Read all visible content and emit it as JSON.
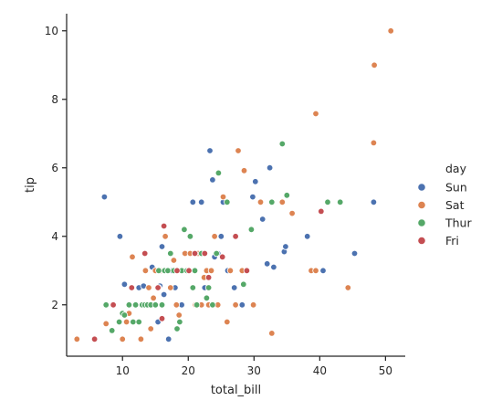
{
  "chart_data": {
    "type": "scatter",
    "xlabel": "total_bill",
    "ylabel": "tip",
    "xlim": [
      1.5,
      53
    ],
    "ylim": [
      0.5,
      10.5
    ],
    "xticks": [
      10,
      20,
      30,
      40,
      50
    ],
    "yticks": [
      2,
      4,
      6,
      8,
      10
    ],
    "grid": false,
    "legend": {
      "title": "day",
      "placement": "right"
    },
    "series": [
      {
        "name": "Sun",
        "color": "#4c72b0",
        "points": [
          [
            7.25,
            5.15
          ],
          [
            9.6,
            4.0
          ],
          [
            10.3,
            2.6
          ],
          [
            11.0,
            2.0
          ],
          [
            12.5,
            2.5
          ],
          [
            13.2,
            2.55
          ],
          [
            14.0,
            2.0
          ],
          [
            14.5,
            3.1
          ],
          [
            15.0,
            2.0
          ],
          [
            15.4,
            1.5
          ],
          [
            15.7,
            2.55
          ],
          [
            16.0,
            3.7
          ],
          [
            16.3,
            2.3
          ],
          [
            17.0,
            1.0
          ],
          [
            17.5,
            3.0
          ],
          [
            18.0,
            2.5
          ],
          [
            18.3,
            3.0
          ],
          [
            19.0,
            2.0
          ],
          [
            19.4,
            3.5
          ],
          [
            20.0,
            3.0
          ],
          [
            20.7,
            5.0
          ],
          [
            21.0,
            3.5
          ],
          [
            21.5,
            3.5
          ],
          [
            22.0,
            5.0
          ],
          [
            22.5,
            2.5
          ],
          [
            23.0,
            3.0
          ],
          [
            23.3,
            6.5
          ],
          [
            23.7,
            5.65
          ],
          [
            24.0,
            3.4
          ],
          [
            24.5,
            3.5
          ],
          [
            25.0,
            4.0
          ],
          [
            25.3,
            5.0
          ],
          [
            26.0,
            3.0
          ],
          [
            27.0,
            2.5
          ],
          [
            28.2,
            2.0
          ],
          [
            29.0,
            3.0
          ],
          [
            29.8,
            5.15
          ],
          [
            30.2,
            5.6
          ],
          [
            31.3,
            4.5
          ],
          [
            32.0,
            3.2
          ],
          [
            32.4,
            6.0
          ],
          [
            33.0,
            3.1
          ],
          [
            34.6,
            3.55
          ],
          [
            34.8,
            3.7
          ],
          [
            38.1,
            4.0
          ],
          [
            40.5,
            3.0
          ],
          [
            45.3,
            3.5
          ],
          [
            48.2,
            5.0
          ]
        ]
      },
      {
        "name": "Sat",
        "color": "#dd8452",
        "points": [
          [
            3.07,
            1.0
          ],
          [
            5.75,
            1.0
          ],
          [
            7.5,
            1.45
          ],
          [
            8.5,
            2.0
          ],
          [
            9.5,
            1.5
          ],
          [
            10.0,
            1.0
          ],
          [
            10.6,
            1.5
          ],
          [
            11.0,
            1.75
          ],
          [
            11.5,
            3.4
          ],
          [
            12.0,
            2.0
          ],
          [
            12.5,
            1.5
          ],
          [
            12.8,
            1.0
          ],
          [
            13.0,
            2.0
          ],
          [
            13.5,
            3.0
          ],
          [
            14.0,
            2.5
          ],
          [
            14.3,
            1.3
          ],
          [
            14.7,
            2.2
          ],
          [
            15.0,
            3.0
          ],
          [
            15.5,
            2.5
          ],
          [
            15.9,
            3.0
          ],
          [
            16.3,
            3.0
          ],
          [
            16.5,
            4.0
          ],
          [
            16.9,
            3.0
          ],
          [
            17.3,
            2.5
          ],
          [
            17.8,
            3.3
          ],
          [
            18.2,
            2.0
          ],
          [
            18.6,
            1.7
          ],
          [
            19.0,
            3.0
          ],
          [
            19.5,
            3.5
          ],
          [
            20.0,
            3.0
          ],
          [
            20.3,
            3.5
          ],
          [
            20.7,
            2.5
          ],
          [
            21.1,
            2.0
          ],
          [
            21.5,
            3.5
          ],
          [
            22.0,
            2.0
          ],
          [
            22.4,
            2.8
          ],
          [
            22.8,
            3.0
          ],
          [
            23.1,
            2.0
          ],
          [
            23.5,
            3.0
          ],
          [
            24.0,
            4.0
          ],
          [
            24.5,
            2.0
          ],
          [
            25.3,
            5.15
          ],
          [
            25.9,
            1.5
          ],
          [
            26.4,
            3.0
          ],
          [
            27.2,
            2.0
          ],
          [
            27.6,
            6.5
          ],
          [
            28.2,
            3.0
          ],
          [
            28.5,
            5.92
          ],
          [
            29.0,
            3.0
          ],
          [
            29.9,
            2.0
          ],
          [
            31.0,
            5.0
          ],
          [
            32.7,
            1.17
          ],
          [
            34.3,
            5.0
          ],
          [
            35.8,
            4.67
          ],
          [
            38.7,
            3.0
          ],
          [
            39.4,
            3.0
          ],
          [
            39.4,
            7.58
          ],
          [
            44.3,
            2.5
          ],
          [
            48.2,
            6.73
          ],
          [
            48.3,
            9.0
          ],
          [
            50.8,
            10.0
          ]
        ]
      },
      {
        "name": "Thur",
        "color": "#55a868",
        "points": [
          [
            7.5,
            2.0
          ],
          [
            8.4,
            1.25
          ],
          [
            9.5,
            1.5
          ],
          [
            10.0,
            1.75
          ],
          [
            10.3,
            1.7
          ],
          [
            11.0,
            2.0
          ],
          [
            11.6,
            1.5
          ],
          [
            12.0,
            2.0
          ],
          [
            12.5,
            1.5
          ],
          [
            13.0,
            2.0
          ],
          [
            13.4,
            2.0
          ],
          [
            13.8,
            2.0
          ],
          [
            14.3,
            2.0
          ],
          [
            15.0,
            2.0
          ],
          [
            15.5,
            3.0
          ],
          [
            16.0,
            2.0
          ],
          [
            16.4,
            3.0
          ],
          [
            16.9,
            3.0
          ],
          [
            17.3,
            3.5
          ],
          [
            17.8,
            3.0
          ],
          [
            18.3,
            1.3
          ],
          [
            18.7,
            1.5
          ],
          [
            19.0,
            3.0
          ],
          [
            19.4,
            4.2
          ],
          [
            19.8,
            3.0
          ],
          [
            20.3,
            4.0
          ],
          [
            20.7,
            2.5
          ],
          [
            21.0,
            3.0
          ],
          [
            21.3,
            2.0
          ],
          [
            22.0,
            3.5
          ],
          [
            22.8,
            2.2
          ],
          [
            23.1,
            2.5
          ],
          [
            23.7,
            2.0
          ],
          [
            24.3,
            3.5
          ],
          [
            24.6,
            5.85
          ],
          [
            25.9,
            5.0
          ],
          [
            28.4,
            2.6
          ],
          [
            29.6,
            4.2
          ],
          [
            32.7,
            5.0
          ],
          [
            34.3,
            6.7
          ],
          [
            35.0,
            5.2
          ],
          [
            41.2,
            5.0
          ],
          [
            43.1,
            5.0
          ]
        ]
      },
      {
        "name": "Fri",
        "color": "#c44e52",
        "points": [
          [
            5.75,
            1.0
          ],
          [
            8.6,
            2.0
          ],
          [
            11.4,
            2.5
          ],
          [
            13.4,
            3.5
          ],
          [
            15.4,
            2.5
          ],
          [
            16.3,
            4.3
          ],
          [
            16.0,
            1.6
          ],
          [
            18.3,
            3.0
          ],
          [
            20.1,
            3.0
          ],
          [
            21.0,
            3.5
          ],
          [
            22.5,
            3.5
          ],
          [
            23.1,
            2.8
          ],
          [
            25.2,
            3.4
          ],
          [
            27.2,
            4.0
          ],
          [
            28.9,
            3.0
          ],
          [
            40.2,
            4.73
          ]
        ]
      }
    ]
  }
}
